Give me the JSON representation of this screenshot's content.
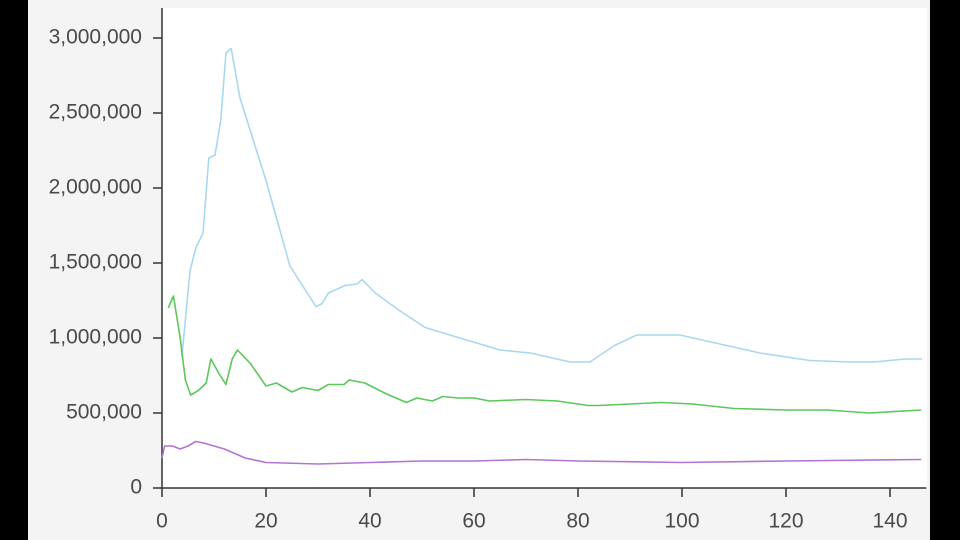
{
  "chart_data": {
    "type": "line",
    "xlim": [
      0,
      147
    ],
    "xticks": [
      0,
      20,
      40,
      60,
      80,
      100,
      120,
      140
    ],
    "ylim": [
      0,
      3200000
    ],
    "yticks": [
      0,
      {
        "value": 500000,
        "label": "500,000"
      },
      {
        "value": 1000000,
        "label": "1,000,000"
      },
      {
        "value": 1500000,
        "label": "1,500,000"
      },
      {
        "value": 2000000,
        "label": "2,000,000"
      },
      {
        "value": 2500000,
        "label": "2,500,000"
      },
      {
        "value": 3000000,
        "label": "3,000,000"
      }
    ],
    "series": [
      {
        "color": "#a9d8ee",
        "x": [
          3.8,
          5.4,
          6.5,
          7.9,
          9,
          10.2,
          11.3,
          12.3,
          13.3,
          15,
          20,
          24.6,
          29.6,
          30.8,
          32,
          35.2,
          37.5,
          38.5,
          41,
          45.8,
          50.6,
          54.4,
          57.3,
          65,
          70.8,
          78.5,
          82.3,
          87,
          91.3,
          99.6,
          107.3,
          115,
          124.6,
          132.3,
          137,
          142.9,
          146.2
        ],
        "values": [
          870000,
          1450000,
          1600000,
          1700000,
          2200000,
          2220000,
          2450000,
          2900000,
          2930000,
          2600000,
          2050000,
          1480000,
          1210000,
          1230000,
          1300000,
          1350000,
          1360000,
          1390000,
          1300000,
          1180000,
          1070000,
          1030000,
          1000000,
          920000,
          900000,
          840000,
          840000,
          950000,
          1020000,
          1020000,
          960000,
          900000,
          850000,
          840000,
          840000,
          860000,
          860000
        ]
      },
      {
        "color": "#5cc85c",
        "x": [
          1.2,
          2.2,
          3.5,
          4.5,
          5.5,
          7,
          8.5,
          9.4,
          11,
          12.3,
          13.5,
          14.5,
          17,
          20,
          22,
          25,
          27,
          30,
          32,
          35,
          36,
          39,
          43,
          47,
          49,
          52,
          54,
          57,
          60,
          63,
          70,
          76,
          82,
          84,
          90,
          96,
          102,
          110,
          120,
          128,
          136,
          146
        ],
        "values": [
          1200000,
          1280000,
          1000000,
          720000,
          620000,
          650000,
          700000,
          860000,
          760000,
          690000,
          860000,
          920000,
          830000,
          680000,
          700000,
          640000,
          670000,
          650000,
          690000,
          690000,
          720000,
          700000,
          630000,
          570000,
          600000,
          580000,
          610000,
          600000,
          600000,
          580000,
          590000,
          580000,
          550000,
          550000,
          560000,
          570000,
          560000,
          530000,
          520000,
          520000,
          500000,
          520000
        ]
      },
      {
        "color": "#b374d2",
        "x": [
          0,
          0.5,
          2,
          3.5,
          5,
          6.5,
          8,
          12,
          16,
          20,
          30,
          40,
          50,
          60,
          70,
          80,
          100,
          120,
          146
        ],
        "values": [
          200000,
          280000,
          280000,
          260000,
          280000,
          310000,
          300000,
          260000,
          200000,
          170000,
          160000,
          170000,
          180000,
          180000,
          190000,
          180000,
          170000,
          180000,
          190000
        ]
      }
    ]
  }
}
